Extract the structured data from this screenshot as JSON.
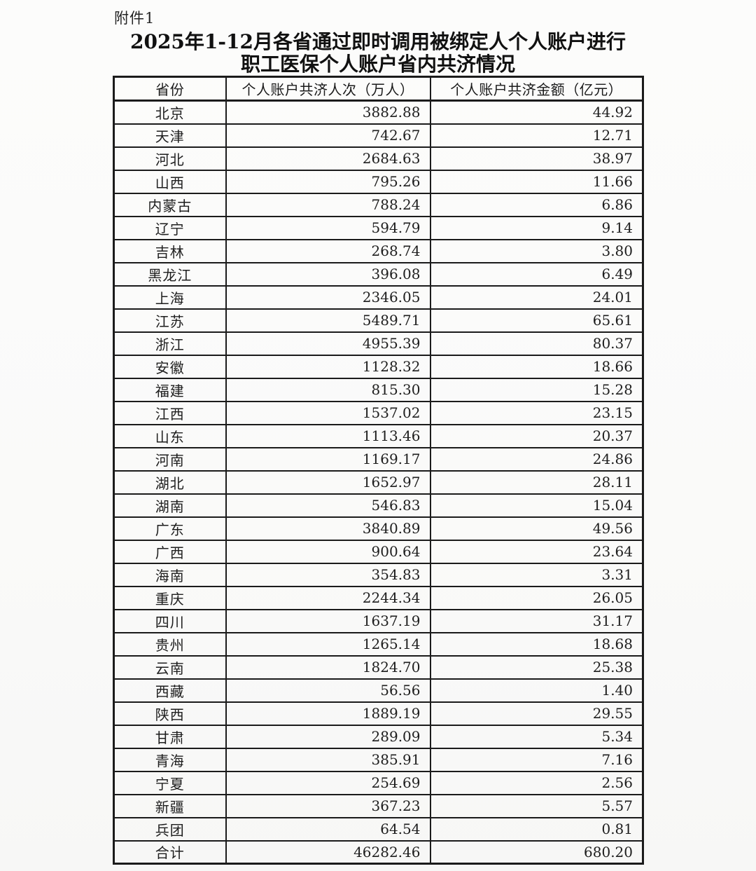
{
  "page": {
    "background": "#fbfbfa",
    "text_color": "#1d1d1d",
    "border_color": "#1b1b1b"
  },
  "document": {
    "attachment_label": "附件1",
    "title_line1": "2025年1-12月各省通过即时调用被绑定人个人账户进行",
    "title_line2": "职工医保个人账户省内共济情况"
  },
  "table": {
    "columns": [
      {
        "key": "province",
        "label": "省份"
      },
      {
        "key": "visits",
        "label": "个人账户共济人次（万人）"
      },
      {
        "key": "amount",
        "label": "个人账户共济金额（亿元）"
      }
    ],
    "rows": [
      {
        "province": "北京",
        "visits": "3882.88",
        "amount": "44.92"
      },
      {
        "province": "天津",
        "visits": "742.67",
        "amount": "12.71"
      },
      {
        "province": "河北",
        "visits": "2684.63",
        "amount": "38.97"
      },
      {
        "province": "山西",
        "visits": "795.26",
        "amount": "11.66"
      },
      {
        "province": "内蒙古",
        "visits": "788.24",
        "amount": "6.86"
      },
      {
        "province": "辽宁",
        "visits": "594.79",
        "amount": "9.14"
      },
      {
        "province": "吉林",
        "visits": "268.74",
        "amount": "3.80"
      },
      {
        "province": "黑龙江",
        "visits": "396.08",
        "amount": "6.49"
      },
      {
        "province": "上海",
        "visits": "2346.05",
        "amount": "24.01"
      },
      {
        "province": "江苏",
        "visits": "5489.71",
        "amount": "65.61"
      },
      {
        "province": "浙江",
        "visits": "4955.39",
        "amount": "80.37"
      },
      {
        "province": "安徽",
        "visits": "1128.32",
        "amount": "18.66"
      },
      {
        "province": "福建",
        "visits": "815.30",
        "amount": "15.28"
      },
      {
        "province": "江西",
        "visits": "1537.02",
        "amount": "23.15"
      },
      {
        "province": "山东",
        "visits": "1113.46",
        "amount": "20.37"
      },
      {
        "province": "河南",
        "visits": "1169.17",
        "amount": "24.86"
      },
      {
        "province": "湖北",
        "visits": "1652.97",
        "amount": "28.11"
      },
      {
        "province": "湖南",
        "visits": "546.83",
        "amount": "15.04"
      },
      {
        "province": "广东",
        "visits": "3840.89",
        "amount": "49.56"
      },
      {
        "province": "广西",
        "visits": "900.64",
        "amount": "23.64"
      },
      {
        "province": "海南",
        "visits": "354.83",
        "amount": "3.31"
      },
      {
        "province": "重庆",
        "visits": "2244.34",
        "amount": "26.05"
      },
      {
        "province": "四川",
        "visits": "1637.19",
        "amount": "31.17"
      },
      {
        "province": "贵州",
        "visits": "1265.14",
        "amount": "18.68"
      },
      {
        "province": "云南",
        "visits": "1824.70",
        "amount": "25.38"
      },
      {
        "province": "西藏",
        "visits": "56.56",
        "amount": "1.40"
      },
      {
        "province": "陕西",
        "visits": "1889.19",
        "amount": "29.55"
      },
      {
        "province": "甘肃",
        "visits": "289.09",
        "amount": "5.34"
      },
      {
        "province": "青海",
        "visits": "385.91",
        "amount": "7.16"
      },
      {
        "province": "宁夏",
        "visits": "254.69",
        "amount": "2.56"
      },
      {
        "province": "新疆",
        "visits": "367.23",
        "amount": "5.57"
      },
      {
        "province": "兵团",
        "visits": "64.54",
        "amount": "0.81"
      },
      {
        "province": "合计",
        "visits": "46282.46",
        "amount": "680.20"
      }
    ]
  }
}
